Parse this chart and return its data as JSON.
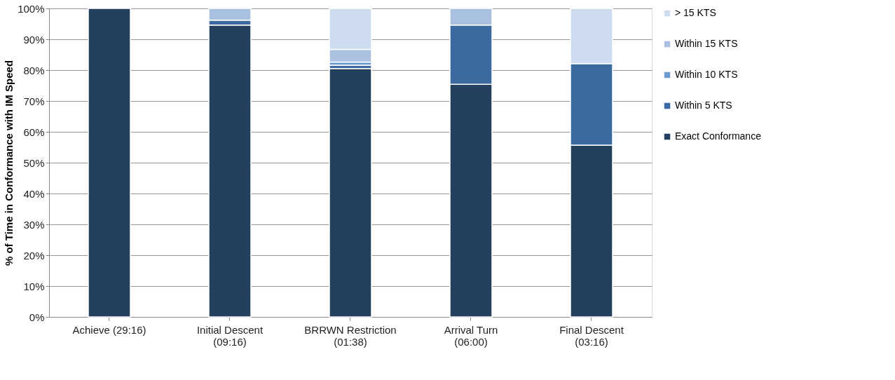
{
  "chart_data": {
    "type": "bar",
    "stacked": true,
    "ylabel": "% of Time in Conformance with IM Speed",
    "categories": [
      "Achieve (29:16)",
      "Initial Descent\n(09:16)",
      "BRRWN Restriction\n(01:38)",
      "Arrival Turn\n(06:00)",
      "Final Descent\n(03:16)"
    ],
    "series": [
      {
        "name": "Exact Conformance",
        "color": "#253f5e",
        "values": [
          100,
          94.6,
          80.5,
          75.4,
          55.7
        ]
      },
      {
        "name": "Within 5 KTS",
        "color": "#3c6aa0",
        "values": [
          null,
          1.6,
          1.1,
          19.2,
          26.4
        ]
      },
      {
        "name": "Within 10 KTS",
        "color": "#6b9bd2",
        "values": [
          null,
          null,
          1.0,
          null,
          null
        ]
      },
      {
        "name": "Within 15 KTS",
        "color": "#a9c0e0",
        "values": [
          null,
          3.8,
          4.1,
          5.4,
          null
        ]
      },
      {
        "name": "> 15 KTS",
        "color": "#cddcf0",
        "values": [
          null,
          null,
          13.3,
          null,
          17.9
        ]
      }
    ],
    "ylim": [
      0,
      100
    ],
    "yticks": [
      {
        "value": 0,
        "label": "0%"
      },
      {
        "value": 10,
        "label": "10%"
      },
      {
        "value": 20,
        "label": "20%"
      },
      {
        "value": 30,
        "label": "30%"
      },
      {
        "value": 40,
        "label": "40%"
      },
      {
        "value": 50,
        "label": "50%"
      },
      {
        "value": 60,
        "label": "60%"
      },
      {
        "value": 70,
        "label": "70%"
      },
      {
        "value": 80,
        "label": "80%"
      },
      {
        "value": 90,
        "label": "90%"
      },
      {
        "value": 100,
        "label": "100%"
      }
    ],
    "grid": "y",
    "legend": "right"
  }
}
